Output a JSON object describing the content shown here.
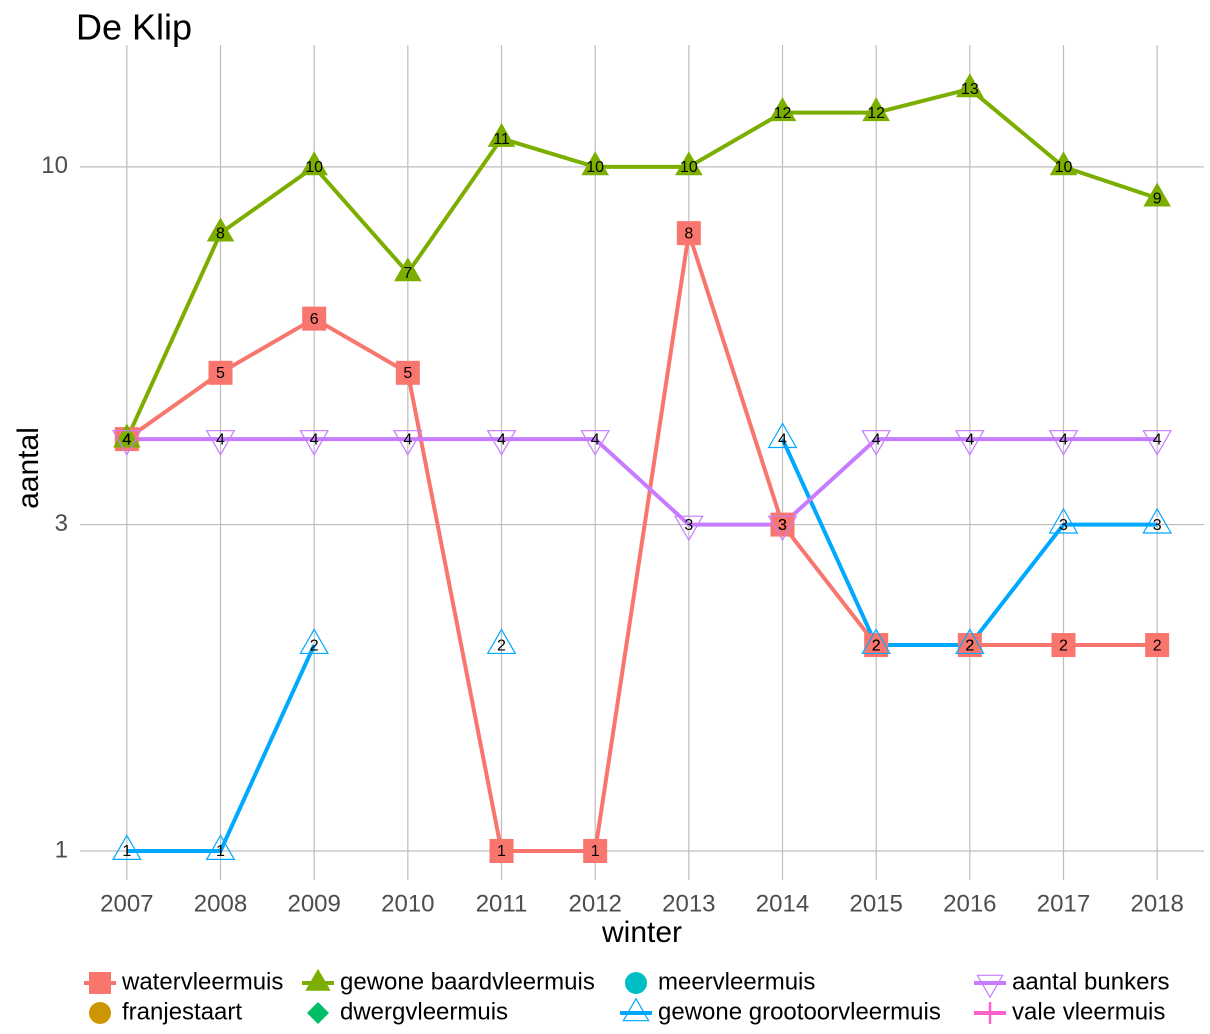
{
  "chart_data": {
    "type": "line",
    "title": "De Klip",
    "x_label": "winter",
    "y_label": "aantal",
    "x": [
      2007,
      2008,
      2009,
      2010,
      2011,
      2012,
      2013,
      2014,
      2015,
      2016,
      2017,
      2018
    ],
    "xlim": [
      2006.5,
      2018.5
    ],
    "xticks": [
      2007,
      2008,
      2009,
      2010,
      2011,
      2012,
      2013,
      2014,
      2015,
      2016,
      2017,
      2018
    ],
    "ylim": [
      0.907,
      15.07
    ],
    "yticks": [
      1,
      3,
      10
    ],
    "log_y": true,
    "grid": true,
    "legend": "bottom",
    "series": [
      {
        "name": "watervleermuis",
        "color": "#F8766D",
        "shape": "square",
        "line": true,
        "values": [
          4,
          5,
          6,
          5,
          1,
          1,
          8,
          3,
          2,
          2,
          2,
          2
        ]
      },
      {
        "name": "franjestaart",
        "color": "#CD9600",
        "shape": "circle",
        "line": false,
        "values": [
          null,
          null,
          null,
          null,
          null,
          null,
          null,
          null,
          null,
          null,
          null,
          null
        ]
      },
      {
        "name": "gewone baardvleermuis",
        "color": "#7CAE00",
        "shape": "triangle",
        "line": true,
        "values": [
          4,
          8,
          10,
          7,
          11,
          10,
          10,
          12,
          12,
          13,
          10,
          9
        ]
      },
      {
        "name": "dwergvleermuis",
        "color": "#00BE67",
        "shape": "diamond",
        "line": false,
        "values": [
          null,
          null,
          null,
          null,
          null,
          null,
          null,
          null,
          null,
          null,
          null,
          null
        ]
      },
      {
        "name": "meervleermuis",
        "color": "#00BFC4",
        "shape": "circle",
        "line": false,
        "values": [
          null,
          null,
          null,
          null,
          null,
          null,
          null,
          null,
          null,
          null,
          null,
          null
        ]
      },
      {
        "name": "gewone grootoorvleermuis",
        "color": "#00A9FF",
        "shape": "triangle-open",
        "line": true,
        "values": [
          1,
          1,
          2,
          null,
          2,
          null,
          null,
          4,
          2,
          2,
          3,
          3
        ]
      },
      {
        "name": "aantal bunkers",
        "color": "#C77CFF",
        "shape": "triangle-down-open",
        "line": true,
        "values": [
          4,
          4,
          4,
          4,
          4,
          4,
          3,
          3,
          4,
          4,
          4,
          4
        ]
      },
      {
        "name": "vale vleermuis",
        "color": "#FF61CC",
        "shape": "plus",
        "line": true,
        "values": [
          null,
          null,
          null,
          null,
          null,
          null,
          null,
          null,
          null,
          null,
          null,
          null
        ]
      }
    ]
  }
}
